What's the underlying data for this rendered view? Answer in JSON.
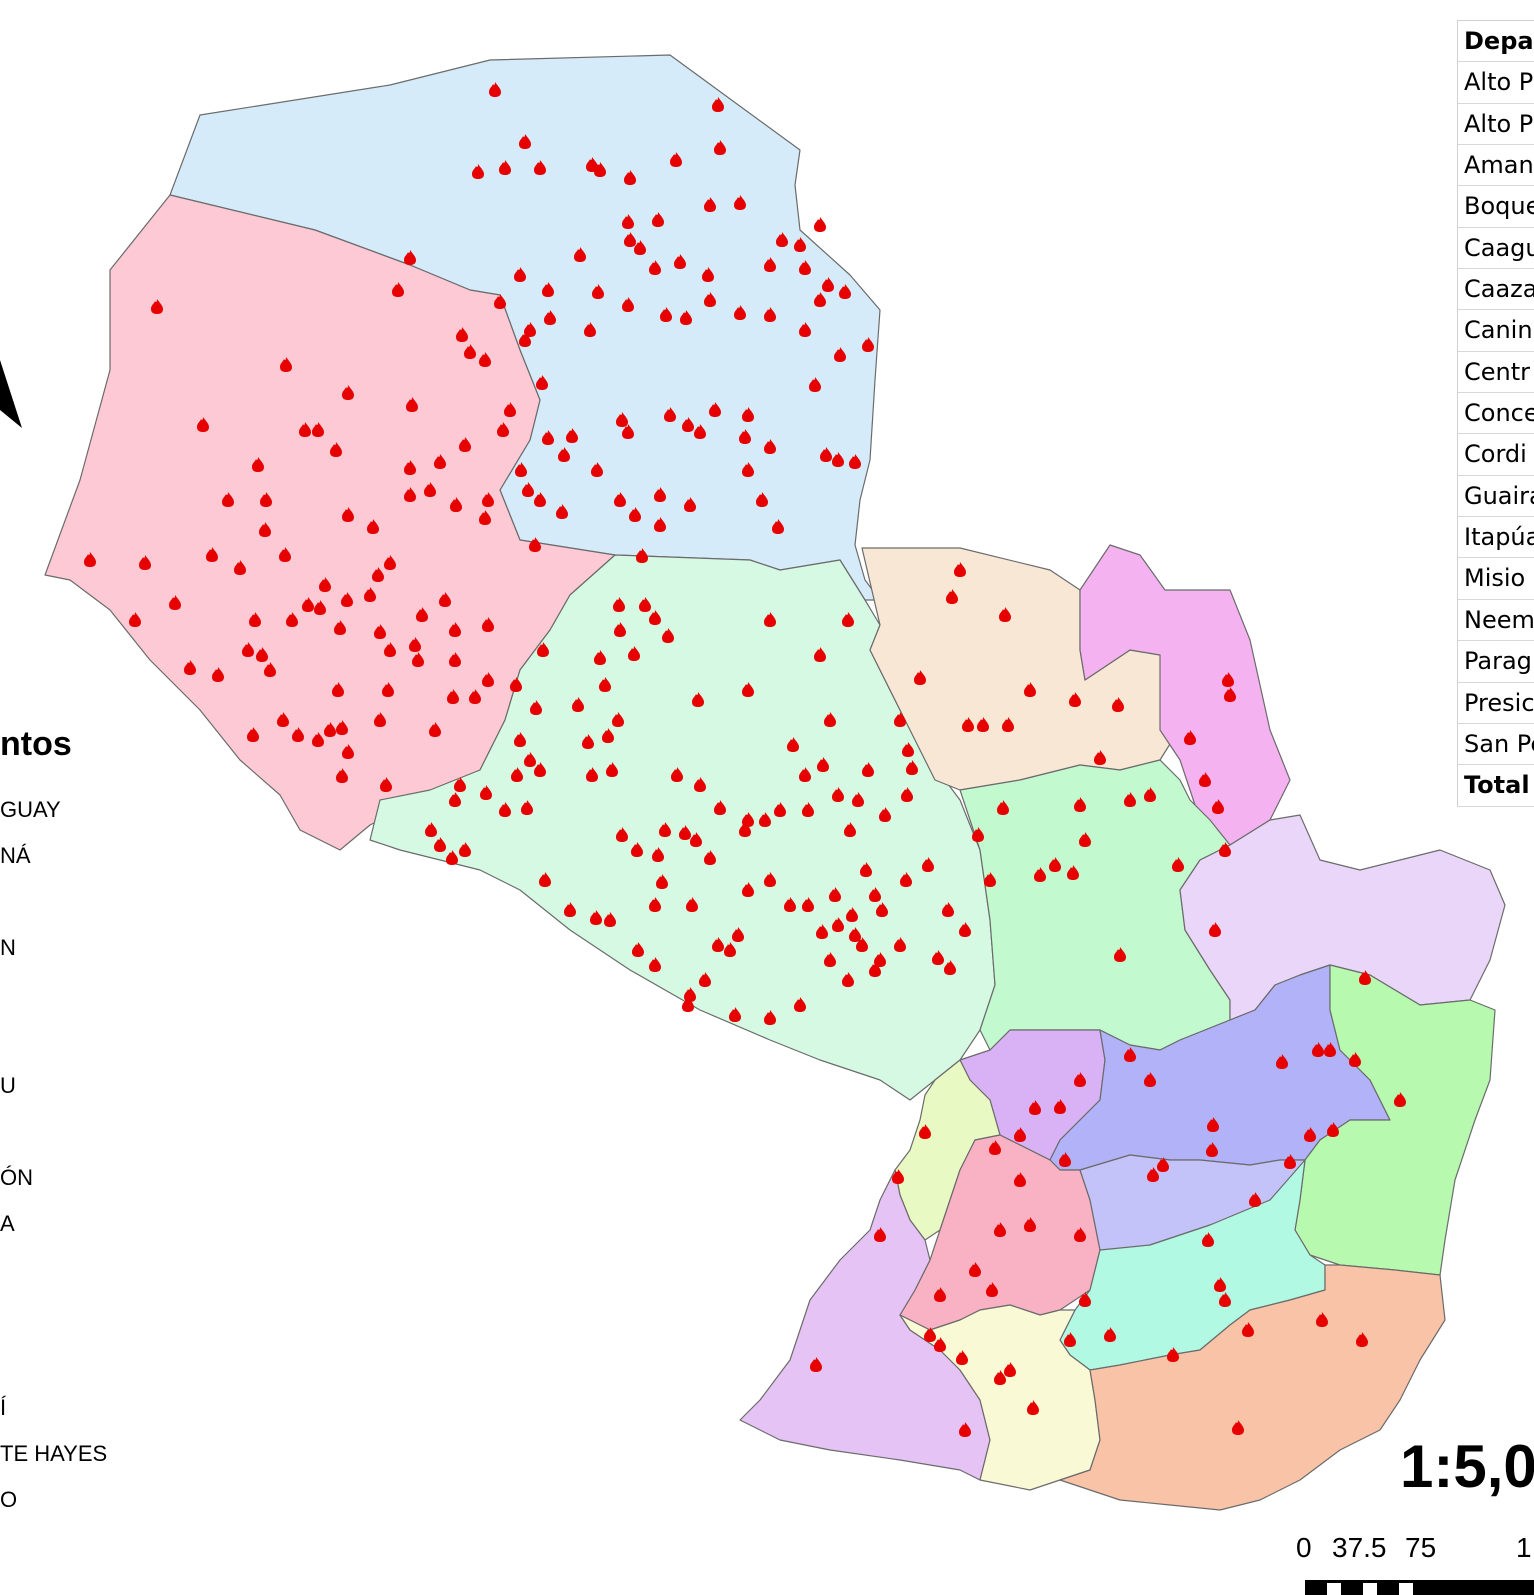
{
  "map": {
    "departments": [
      {
        "id": "alto-paraguay",
        "color": "#d6ebf9"
      },
      {
        "id": "presidente-hayes-west",
        "color": "#fcc9d4"
      },
      {
        "id": "boqueron-east",
        "color": "#d6f9e3"
      },
      {
        "id": "concepcion",
        "color": "#f9e7d6"
      },
      {
        "id": "amambay",
        "color": "#f5b2f0"
      },
      {
        "id": "san-pedro",
        "color": "#c3f9cf"
      },
      {
        "id": "canindeyu",
        "color": "#ead6f9"
      },
      {
        "id": "cordillera",
        "color": "#d9b2f5"
      },
      {
        "id": "caaguazu",
        "color": "#b2b2f9"
      },
      {
        "id": "alto-parana",
        "color": "#b8f9b0"
      },
      {
        "id": "central",
        "color": "#e9f9c3"
      },
      {
        "id": "paraguari",
        "color": "#f9b2c3"
      },
      {
        "id": "guaira",
        "color": "#c3c3f9"
      },
      {
        "id": "caazapa",
        "color": "#b2f9e3"
      },
      {
        "id": "neembucu",
        "color": "#e6c3f5"
      },
      {
        "id": "misiones",
        "color": "#f9f9d6"
      },
      {
        "id": "itapua",
        "color": "#f9c3a8"
      }
    ],
    "fire_color": "#e60000"
  },
  "north_arrow": {
    "icon": "north-arrow-icon"
  },
  "legend": {
    "title": "ntos",
    "items": [
      "GUAY",
      "NÁ",
      "N",
      "U",
      "ÓN",
      "A",
      "Í",
      "TE HAYES",
      "O"
    ]
  },
  "table": {
    "rows": [
      "Depar",
      "Alto P",
      "Alto P",
      "Aman",
      "Boque",
      "Caagu",
      "Caaza",
      "Canin",
      "Centr",
      "Conce",
      "Cordi",
      "Guaira",
      "Itapúa",
      "Misio",
      "Neem",
      "Parag",
      "Presic",
      "San Pe",
      "Total"
    ]
  },
  "scale": {
    "ratio": "1:5,0",
    "labels": [
      "0",
      "37.5",
      "75",
      "1"
    ]
  }
}
